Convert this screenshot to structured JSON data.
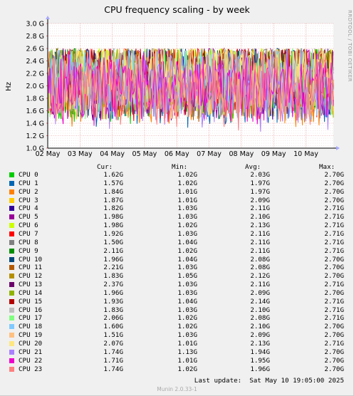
{
  "chart_data": {
    "type": "line",
    "title": "CPU frequency scaling - by week",
    "ylabel": "Hz",
    "side_label": "RRDTOOL / TOBI OETIKER",
    "y_ticks": [
      "1.0 G",
      "1.2 G",
      "1.4 G",
      "1.6 G",
      "1.8 G",
      "2.0 G",
      "2.2 G",
      "2.4 G",
      "2.6 G",
      "2.8 G",
      "3.0 G"
    ],
    "ylim": [
      1.0,
      3.0
    ],
    "x_ticks": [
      "02 May",
      "03 May",
      "04 May",
      "05 May",
      "06 May",
      "07 May",
      "08 May",
      "09 May",
      "10 May"
    ],
    "grid": true,
    "columns": {
      "cur": "Cur:",
      "min": "Min:",
      "avg": "Avg:",
      "max": "Max:"
    },
    "series": [
      {
        "name": "CPU 0",
        "color": "#00cc00",
        "cur": "1.62G",
        "min": "1.02G",
        "avg": "2.03G",
        "max": "2.70G"
      },
      {
        "name": "CPU 1",
        "color": "#0066b3",
        "cur": "1.57G",
        "min": "1.02G",
        "avg": "1.97G",
        "max": "2.70G"
      },
      {
        "name": "CPU 2",
        "color": "#ff8000",
        "cur": "1.84G",
        "min": "1.01G",
        "avg": "1.97G",
        "max": "2.70G"
      },
      {
        "name": "CPU 3",
        "color": "#ffcc00",
        "cur": "1.87G",
        "min": "1.01G",
        "avg": "2.09G",
        "max": "2.70G"
      },
      {
        "name": "CPU 4",
        "color": "#330099",
        "cur": "1.82G",
        "min": "1.03G",
        "avg": "2.11G",
        "max": "2.71G"
      },
      {
        "name": "CPU 5",
        "color": "#990099",
        "cur": "1.98G",
        "min": "1.03G",
        "avg": "2.10G",
        "max": "2.71G"
      },
      {
        "name": "CPU 6",
        "color": "#ccff00",
        "cur": "1.98G",
        "min": "1.02G",
        "avg": "2.13G",
        "max": "2.71G"
      },
      {
        "name": "CPU 7",
        "color": "#ff0000",
        "cur": "1.92G",
        "min": "1.03G",
        "avg": "2.11G",
        "max": "2.71G"
      },
      {
        "name": "CPU 8",
        "color": "#808080",
        "cur": "1.50G",
        "min": "1.04G",
        "avg": "2.11G",
        "max": "2.71G"
      },
      {
        "name": "CPU 9",
        "color": "#008f00",
        "cur": "2.11G",
        "min": "1.02G",
        "avg": "2.11G",
        "max": "2.71G"
      },
      {
        "name": "CPU 10",
        "color": "#00487d",
        "cur": "1.96G",
        "min": "1.04G",
        "avg": "2.08G",
        "max": "2.70G"
      },
      {
        "name": "CPU 11",
        "color": "#b35a00",
        "cur": "2.21G",
        "min": "1.03G",
        "avg": "2.08G",
        "max": "2.70G"
      },
      {
        "name": "CPU 12",
        "color": "#b38f00",
        "cur": "1.83G",
        "min": "1.05G",
        "avg": "2.12G",
        "max": "2.70G"
      },
      {
        "name": "CPU 13",
        "color": "#6b006b",
        "cur": "2.37G",
        "min": "1.03G",
        "avg": "2.11G",
        "max": "2.71G"
      },
      {
        "name": "CPU 14",
        "color": "#8fb300",
        "cur": "1.96G",
        "min": "1.03G",
        "avg": "2.09G",
        "max": "2.70G"
      },
      {
        "name": "CPU 15",
        "color": "#b30000",
        "cur": "1.93G",
        "min": "1.04G",
        "avg": "2.14G",
        "max": "2.71G"
      },
      {
        "name": "CPU 16",
        "color": "#bebebe",
        "cur": "1.83G",
        "min": "1.03G",
        "avg": "2.10G",
        "max": "2.71G"
      },
      {
        "name": "CPU 17",
        "color": "#80ff80",
        "cur": "2.06G",
        "min": "1.02G",
        "avg": "2.08G",
        "max": "2.71G"
      },
      {
        "name": "CPU 18",
        "color": "#80c9ff",
        "cur": "1.60G",
        "min": "1.02G",
        "avg": "2.10G",
        "max": "2.70G"
      },
      {
        "name": "CPU 19",
        "color": "#ffc080",
        "cur": "1.51G",
        "min": "1.03G",
        "avg": "2.09G",
        "max": "2.70G"
      },
      {
        "name": "CPU 20",
        "color": "#ffe680",
        "cur": "2.07G",
        "min": "1.01G",
        "avg": "2.13G",
        "max": "2.71G"
      },
      {
        "name": "CPU 21",
        "color": "#aa80ff",
        "cur": "1.74G",
        "min": "1.13G",
        "avg": "1.94G",
        "max": "2.70G"
      },
      {
        "name": "CPU 22",
        "color": "#ee00cc",
        "cur": "1.71G",
        "min": "1.01G",
        "avg": "1.95G",
        "max": "2.70G"
      },
      {
        "name": "CPU 23",
        "color": "#ff8080",
        "cur": "1.74G",
        "min": "1.02G",
        "avg": "1.96G",
        "max": "2.70G"
      }
    ],
    "last_update": "Last update:  Sat May 10 19:05:00 2025",
    "version": "Munin 2.0.33-1"
  }
}
